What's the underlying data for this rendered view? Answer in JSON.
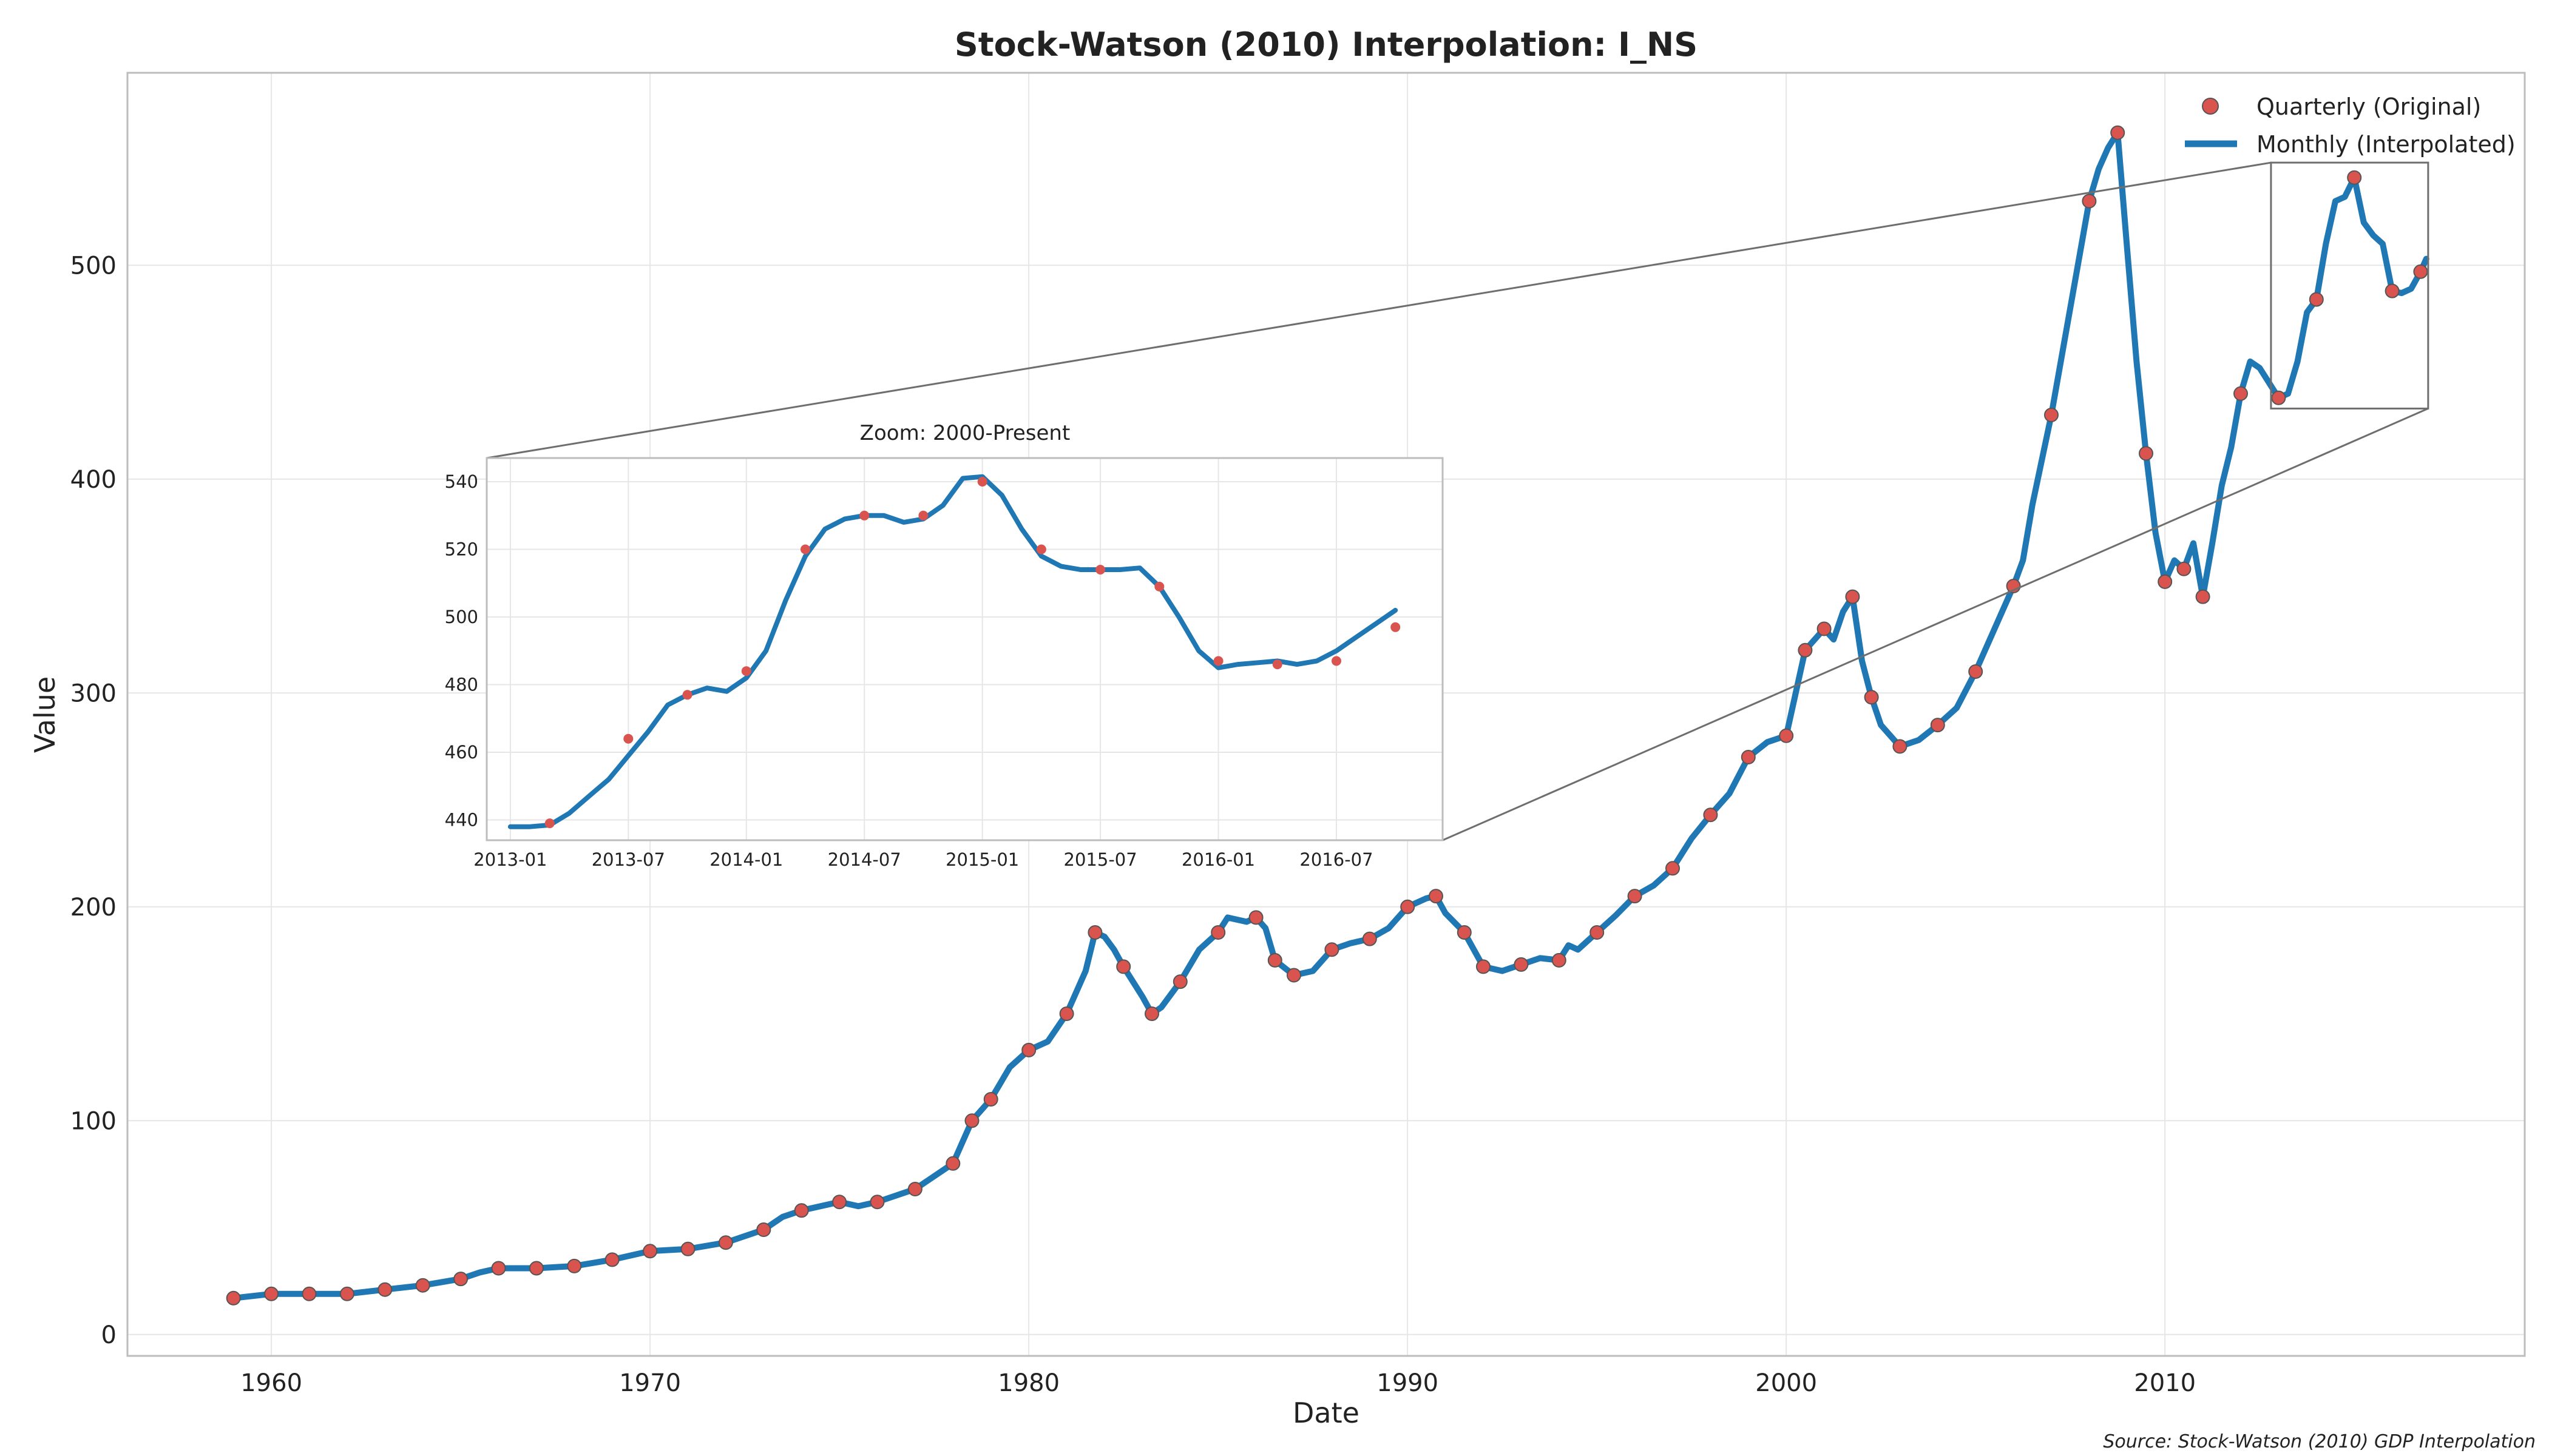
{
  "chart_data": {
    "type": "line",
    "title": "Stock-Watson (2010) Interpolation: I_NS",
    "xlabel": "Date",
    "ylabel": "Value",
    "xlim": [
      1956.2,
      2019.5
    ],
    "ylim": [
      -10,
      590
    ],
    "x_ticks": [
      "1960",
      "1970",
      "1980",
      "1990",
      "2000",
      "2010"
    ],
    "y_ticks": [
      "0",
      "100",
      "200",
      "300",
      "400",
      "500"
    ],
    "grid": true,
    "legend": {
      "placement": "top-right",
      "entries": [
        "Quarterly (Original)",
        "Monthly (Interpolated)"
      ]
    },
    "series": [
      {
        "name": "Monthly (Interpolated)",
        "kind": "line",
        "color": "#1f77b4",
        "points": [
          [
            1959.0,
            17
          ],
          [
            1960.0,
            19
          ],
          [
            1961.0,
            19
          ],
          [
            1962.0,
            19
          ],
          [
            1963.0,
            21
          ],
          [
            1964.0,
            23
          ],
          [
            1965.0,
            26
          ],
          [
            1965.5,
            29
          ],
          [
            1966.0,
            31
          ],
          [
            1967.0,
            31
          ],
          [
            1968.0,
            32
          ],
          [
            1969.0,
            35
          ],
          [
            1970.0,
            39
          ],
          [
            1971.0,
            40
          ],
          [
            1972.0,
            43
          ],
          [
            1973.0,
            49
          ],
          [
            1973.5,
            55
          ],
          [
            1974.0,
            58
          ],
          [
            1975.0,
            62
          ],
          [
            1975.5,
            60
          ],
          [
            1976.0,
            62
          ],
          [
            1977.0,
            68
          ],
          [
            1978.0,
            80
          ],
          [
            1978.25,
            90
          ],
          [
            1978.5,
            100
          ],
          [
            1979.0,
            110
          ],
          [
            1979.5,
            125
          ],
          [
            1980.0,
            133
          ],
          [
            1980.5,
            137
          ],
          [
            1981.0,
            150
          ],
          [
            1981.5,
            170
          ],
          [
            1981.75,
            188
          ],
          [
            1982.0,
            186
          ],
          [
            1982.25,
            180
          ],
          [
            1982.5,
            172
          ],
          [
            1983.0,
            158
          ],
          [
            1983.25,
            150
          ],
          [
            1983.5,
            153
          ],
          [
            1984.0,
            165
          ],
          [
            1984.5,
            180
          ],
          [
            1985.0,
            188
          ],
          [
            1985.25,
            195
          ],
          [
            1985.75,
            193
          ],
          [
            1986.0,
            195
          ],
          [
            1986.25,
            190
          ],
          [
            1986.5,
            175
          ],
          [
            1987.0,
            168
          ],
          [
            1987.5,
            170
          ],
          [
            1988.0,
            180
          ],
          [
            1988.5,
            183
          ],
          [
            1989.0,
            185
          ],
          [
            1989.5,
            190
          ],
          [
            1990.0,
            200
          ],
          [
            1990.5,
            204
          ],
          [
            1990.75,
            205
          ],
          [
            1991.0,
            197
          ],
          [
            1991.5,
            188
          ],
          [
            1992.0,
            172
          ],
          [
            1992.5,
            170
          ],
          [
            1993.0,
            173
          ],
          [
            1993.5,
            176
          ],
          [
            1994.0,
            175
          ],
          [
            1994.25,
            182
          ],
          [
            1994.5,
            180
          ],
          [
            1995.0,
            188
          ],
          [
            1995.5,
            196
          ],
          [
            1996.0,
            205
          ],
          [
            1996.5,
            210
          ],
          [
            1997.0,
            218
          ],
          [
            1997.5,
            232
          ],
          [
            1998.0,
            243
          ],
          [
            1998.5,
            253
          ],
          [
            1999.0,
            270
          ],
          [
            1999.5,
            277
          ],
          [
            2000.0,
            280
          ],
          [
            2000.5,
            320
          ],
          [
            2001.0,
            330
          ],
          [
            2001.25,
            325
          ],
          [
            2001.5,
            338
          ],
          [
            2001.75,
            345
          ],
          [
            2002.0,
            315
          ],
          [
            2002.25,
            298
          ],
          [
            2002.5,
            285
          ],
          [
            2003.0,
            275
          ],
          [
            2003.5,
            278
          ],
          [
            2004.0,
            285
          ],
          [
            2004.5,
            293
          ],
          [
            2005.0,
            310
          ],
          [
            2005.5,
            330
          ],
          [
            2006.0,
            350
          ],
          [
            2006.25,
            362
          ],
          [
            2006.5,
            388
          ],
          [
            2007.0,
            430
          ],
          [
            2007.5,
            480
          ],
          [
            2008.0,
            530
          ],
          [
            2008.25,
            545
          ],
          [
            2008.5,
            555
          ],
          [
            2008.75,
            562
          ],
          [
            2009.0,
            508
          ],
          [
            2009.25,
            455
          ],
          [
            2009.5,
            412
          ],
          [
            2009.75,
            375
          ],
          [
            2010.0,
            352
          ],
          [
            2010.25,
            362
          ],
          [
            2010.5,
            358
          ],
          [
            2010.75,
            370
          ],
          [
            2011.0,
            345
          ],
          [
            2011.25,
            370
          ],
          [
            2011.5,
            397
          ],
          [
            2011.75,
            415
          ],
          [
            2012.0,
            440
          ],
          [
            2012.25,
            455
          ],
          [
            2012.5,
            452
          ],
          [
            2012.75,
            445
          ],
          [
            2013.0,
            438
          ],
          [
            2013.25,
            440
          ],
          [
            2013.5,
            455
          ],
          [
            2013.75,
            478
          ],
          [
            2014.0,
            484
          ],
          [
            2014.25,
            510
          ],
          [
            2014.5,
            530
          ],
          [
            2014.75,
            532
          ],
          [
            2015.0,
            541
          ],
          [
            2015.25,
            520
          ],
          [
            2015.5,
            514
          ],
          [
            2015.75,
            510
          ],
          [
            2016.0,
            488
          ],
          [
            2016.25,
            487
          ],
          [
            2016.5,
            489
          ],
          [
            2016.75,
            497
          ],
          [
            2016.9,
            503
          ]
        ]
      },
      {
        "name": "Quarterly (Original)",
        "kind": "scatter",
        "color": "#d9534f",
        "points": [
          [
            1959.0,
            17
          ],
          [
            1960.0,
            19
          ],
          [
            1961.0,
            19
          ],
          [
            1962.0,
            19
          ],
          [
            1963.0,
            21
          ],
          [
            1964.0,
            23
          ],
          [
            1965.0,
            26
          ],
          [
            1966.0,
            31
          ],
          [
            1967.0,
            31
          ],
          [
            1968.0,
            32
          ],
          [
            1969.0,
            35
          ],
          [
            1970.0,
            39
          ],
          [
            1971.0,
            40
          ],
          [
            1972.0,
            43
          ],
          [
            1973.0,
            49
          ],
          [
            1974.0,
            58
          ],
          [
            1975.0,
            62
          ],
          [
            1976.0,
            62
          ],
          [
            1977.0,
            68
          ],
          [
            1978.0,
            80
          ],
          [
            1978.5,
            100
          ],
          [
            1979.0,
            110
          ],
          [
            1980.0,
            133
          ],
          [
            1981.0,
            150
          ],
          [
            1981.75,
            188
          ],
          [
            1982.5,
            172
          ],
          [
            1983.25,
            150
          ],
          [
            1984.0,
            165
          ],
          [
            1985.0,
            188
          ],
          [
            1986.0,
            195
          ],
          [
            1986.5,
            175
          ],
          [
            1987.0,
            168
          ],
          [
            1988.0,
            180
          ],
          [
            1989.0,
            185
          ],
          [
            1990.0,
            200
          ],
          [
            1990.75,
            205
          ],
          [
            1991.5,
            188
          ],
          [
            1992.0,
            172
          ],
          [
            1993.0,
            173
          ],
          [
            1994.0,
            175
          ],
          [
            1995.0,
            188
          ],
          [
            1996.0,
            205
          ],
          [
            1997.0,
            218
          ],
          [
            1998.0,
            243
          ],
          [
            1999.0,
            270
          ],
          [
            2000.0,
            280
          ],
          [
            2000.5,
            320
          ],
          [
            2001.0,
            330
          ],
          [
            2001.75,
            345
          ],
          [
            2002.25,
            298
          ],
          [
            2003.0,
            275
          ],
          [
            2004.0,
            285
          ],
          [
            2005.0,
            310
          ],
          [
            2006.0,
            350
          ],
          [
            2007.0,
            430
          ],
          [
            2008.0,
            530
          ],
          [
            2008.75,
            562
          ],
          [
            2009.5,
            412
          ],
          [
            2010.0,
            352
          ],
          [
            2010.5,
            358
          ],
          [
            2011.0,
            345
          ],
          [
            2012.0,
            440
          ],
          [
            2013.0,
            438
          ],
          [
            2014.0,
            484
          ],
          [
            2015.0,
            541
          ],
          [
            2016.0,
            488
          ],
          [
            2016.75,
            497
          ]
        ]
      }
    ],
    "inset": {
      "title": "Zoom: 2000-Present",
      "xlim": [
        2012.9,
        2016.95
      ],
      "ylim": [
        434,
        547
      ],
      "x_ticks": [
        "2013-01",
        "2013-07",
        "2014-01",
        "2014-07",
        "2015-01",
        "2015-07",
        "2016-01",
        "2016-07"
      ],
      "y_ticks": [
        "440",
        "460",
        "480",
        "500",
        "520",
        "540"
      ],
      "line_points": [
        [
          2013.0,
          438
        ],
        [
          2013.083,
          438
        ],
        [
          2013.167,
          438.5
        ],
        [
          2013.25,
          442
        ],
        [
          2013.333,
          447
        ],
        [
          2013.417,
          452
        ],
        [
          2013.5,
          459
        ],
        [
          2013.583,
          466
        ],
        [
          2013.667,
          474
        ],
        [
          2013.75,
          477
        ],
        [
          2013.833,
          479
        ],
        [
          2013.917,
          478
        ],
        [
          2014.0,
          482
        ],
        [
          2014.083,
          490
        ],
        [
          2014.167,
          505
        ],
        [
          2014.25,
          518
        ],
        [
          2014.333,
          526
        ],
        [
          2014.417,
          529
        ],
        [
          2014.5,
          530
        ],
        [
          2014.583,
          530
        ],
        [
          2014.667,
          528
        ],
        [
          2014.75,
          529
        ],
        [
          2014.833,
          533
        ],
        [
          2014.917,
          541
        ],
        [
          2015.0,
          541.5
        ],
        [
          2015.083,
          536
        ],
        [
          2015.167,
          526
        ],
        [
          2015.25,
          518
        ],
        [
          2015.333,
          515
        ],
        [
          2015.417,
          514
        ],
        [
          2015.5,
          514
        ],
        [
          2015.583,
          514
        ],
        [
          2015.667,
          514.5
        ],
        [
          2015.75,
          509
        ],
        [
          2015.833,
          500
        ],
        [
          2015.917,
          490
        ],
        [
          2016.0,
          485
        ],
        [
          2016.083,
          486
        ],
        [
          2016.167,
          486.5
        ],
        [
          2016.25,
          487
        ],
        [
          2016.333,
          486
        ],
        [
          2016.417,
          487
        ],
        [
          2016.5,
          490
        ],
        [
          2016.583,
          494
        ],
        [
          2016.667,
          498
        ],
        [
          2016.75,
          502
        ]
      ],
      "scatter_points": [
        [
          2013.167,
          439
        ],
        [
          2013.5,
          464
        ],
        [
          2013.75,
          477
        ],
        [
          2014.0,
          484
        ],
        [
          2014.25,
          520
        ],
        [
          2014.5,
          530
        ],
        [
          2014.75,
          530
        ],
        [
          2015.0,
          540
        ],
        [
          2015.25,
          520
        ],
        [
          2015.5,
          514
        ],
        [
          2015.75,
          509
        ],
        [
          2016.0,
          487
        ],
        [
          2016.25,
          486
        ],
        [
          2016.5,
          487
        ],
        [
          2016.75,
          497
        ]
      ]
    },
    "zoom_box": {
      "xlim": [
        2012.8,
        2016.95
      ],
      "ylim": [
        433,
        548
      ]
    },
    "source_note": "Source: Stock-Watson (2010) GDP Interpolation"
  }
}
